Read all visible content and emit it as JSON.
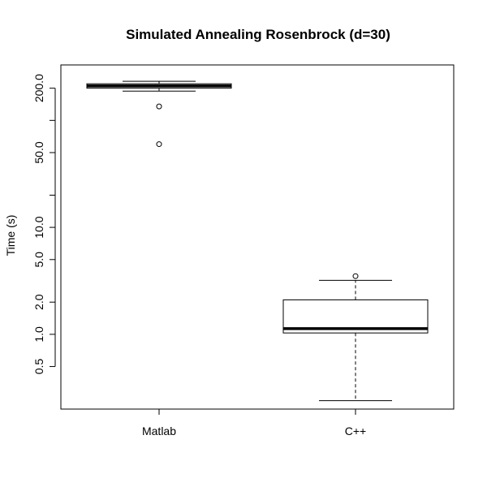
{
  "chart_data": {
    "type": "boxplot",
    "title": "Simulated Annealing Rosenbrock (d=30)",
    "ylabel": "Time (s)",
    "xlabel": "",
    "y_scale": "log",
    "ylim": [
      0.2,
      330
    ],
    "y_ticks": [
      {
        "value": 0.5,
        "label": "0.5"
      },
      {
        "value": 1.0,
        "label": "1.0"
      },
      {
        "value": 2.0,
        "label": "2.0"
      },
      {
        "value": 5.0,
        "label": "5.0"
      },
      {
        "value": 10.0,
        "label": "10.0"
      },
      {
        "value": 20.0,
        "label": ""
      },
      {
        "value": 50.0,
        "label": "50.0"
      },
      {
        "value": 100.0,
        "label": ""
      },
      {
        "value": 200.0,
        "label": "200.0"
      }
    ],
    "categories": [
      "Matlab",
      "C++"
    ],
    "boxes": [
      {
        "name": "Matlab",
        "whisker_low": 188,
        "q1": 200,
        "median": 210,
        "q3": 220,
        "whisker_high": 232,
        "outliers": [
          135,
          60
        ]
      },
      {
        "name": "C++",
        "whisker_low": 0.24,
        "q1": 1.03,
        "median": 1.13,
        "q3": 2.1,
        "whisker_high": 3.2,
        "outliers": [
          3.5
        ]
      }
    ],
    "grid": false,
    "legend": "none"
  }
}
